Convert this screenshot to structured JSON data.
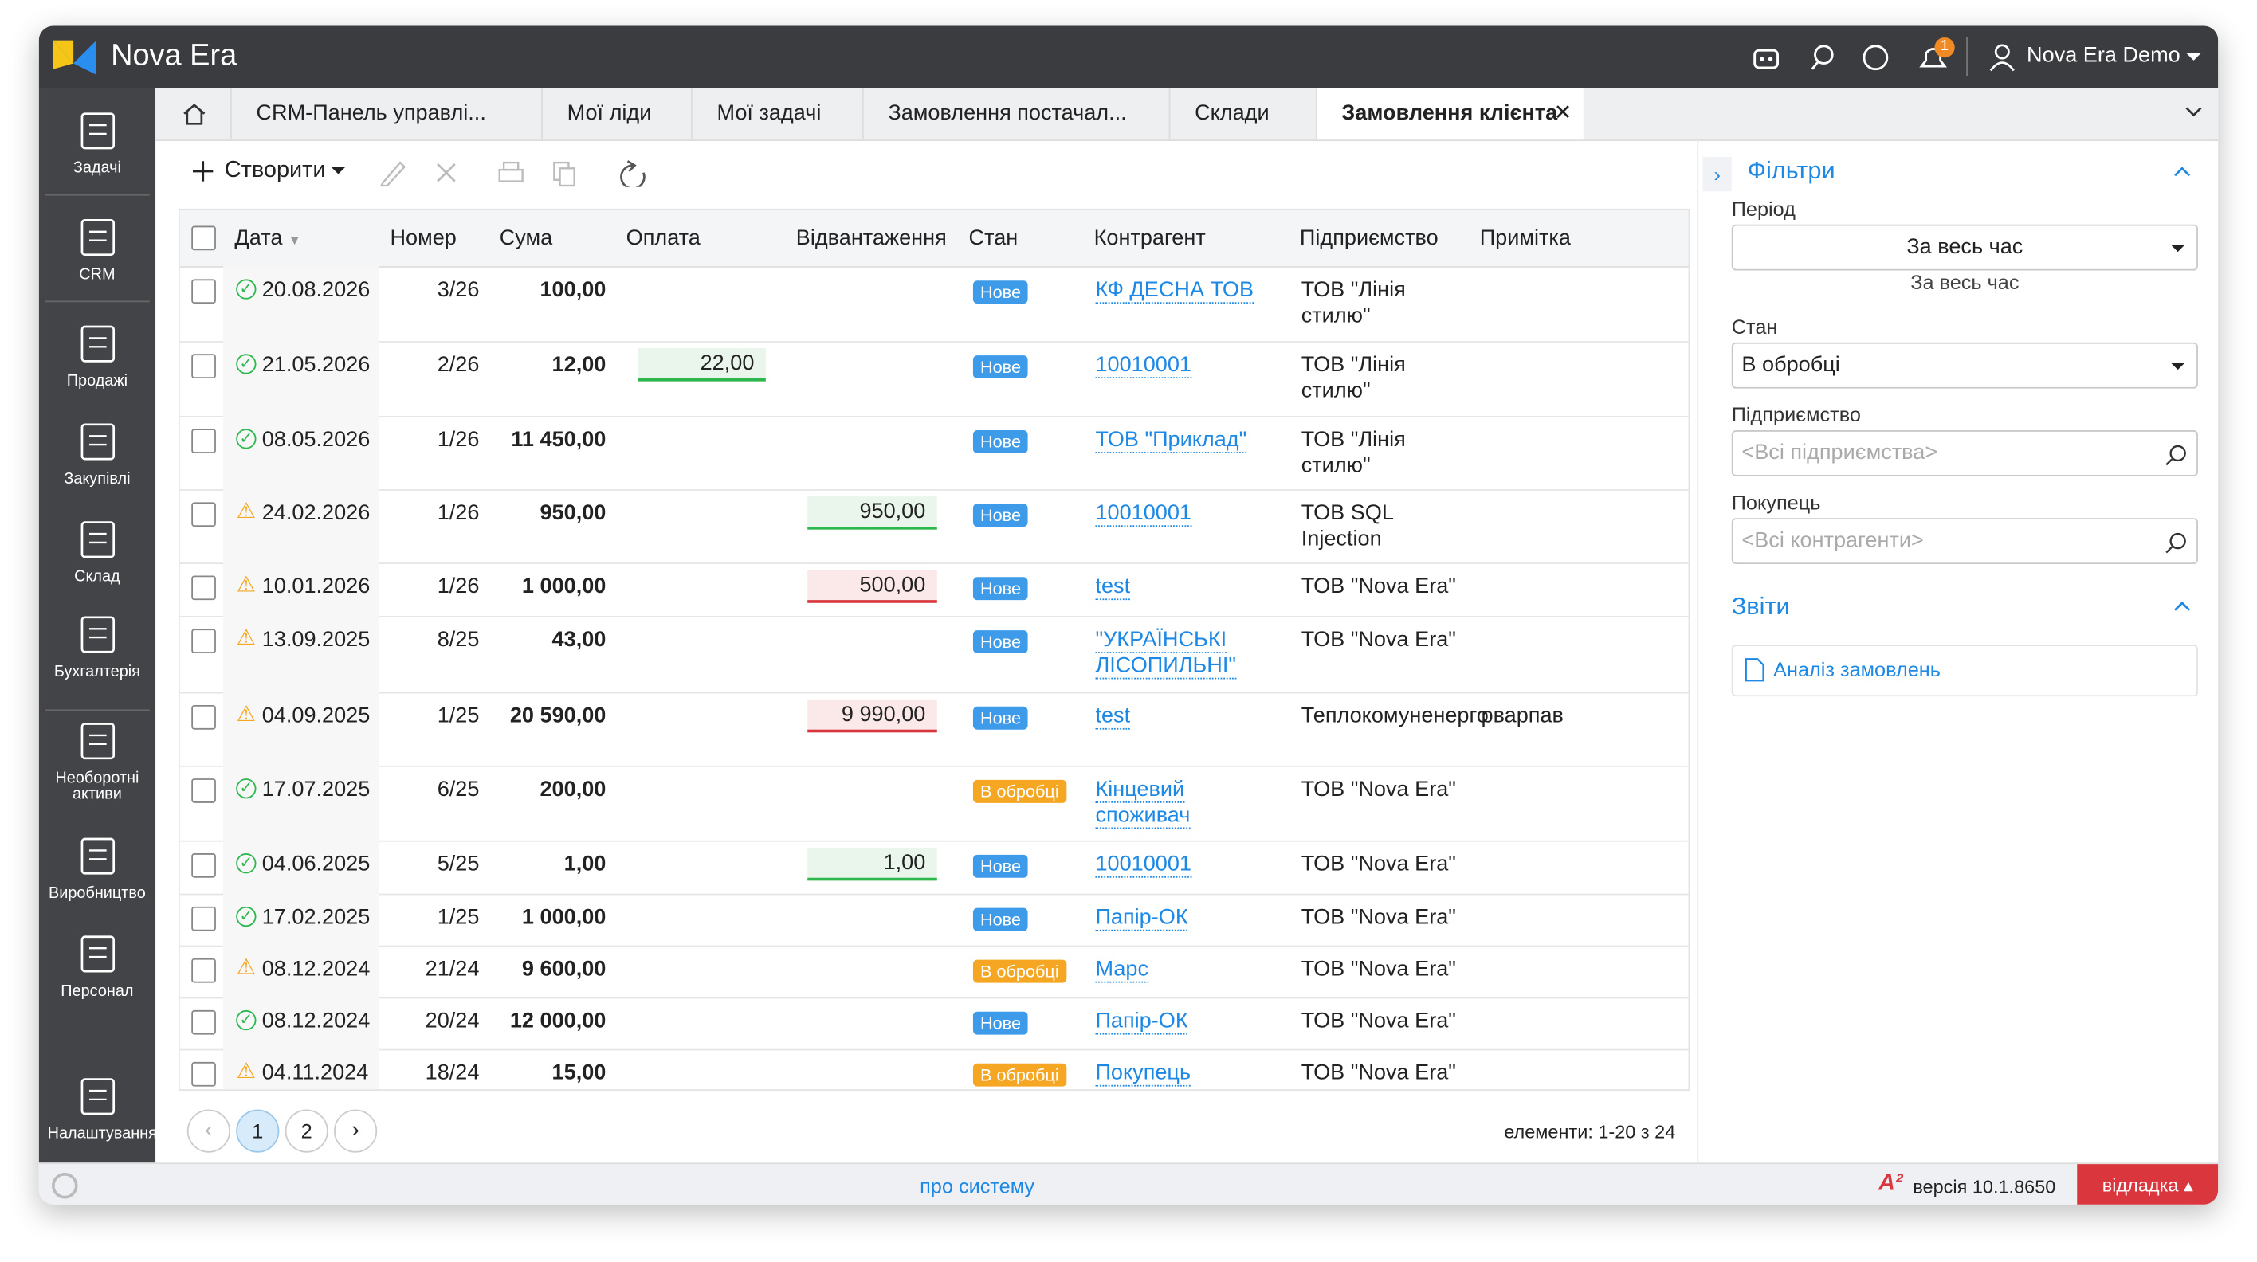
{
  "app": {
    "name": "Nova Era",
    "user": "Nova Era Demo",
    "notifications": "1"
  },
  "sidebar": [
    "Задачі",
    "CRM",
    "Продажі",
    "Закупівлі",
    "Склад",
    "Бухгалтерія",
    "Необоротні активи",
    "Виробництво",
    "Персонал",
    "Налаштування"
  ],
  "tabs": [
    "CRM-Панель управлі...",
    "Мої ліди",
    "Мої задачі",
    "Замовлення постачал...",
    "Склади",
    "Замовлення клієнта"
  ],
  "toolbar": {
    "create": "Створити"
  },
  "table": {
    "headers": [
      "Дата",
      "Номер",
      "Сума",
      "Оплата",
      "Відвантаження",
      "Стан",
      "Контрагент",
      "Підприємство",
      "Примітка"
    ],
    "rows": [
      {
        "status": "ok",
        "date": "20.08.2026",
        "number": "3/26",
        "sum": "100,00",
        "state": "Нове",
        "state_color": "#3d9be9",
        "counterparty": "КФ ДЕСНА ТОВ",
        "company": "ТОВ \"Лінія стилю\""
      },
      {
        "status": "ok",
        "date": "21.05.2026",
        "number": "2/26",
        "sum": "12,00",
        "payment": "22,00",
        "payment_bar": "#2db84d",
        "state": "Нове",
        "state_color": "#3d9be9",
        "counterparty": "10010001",
        "company": "ТОВ \"Лінія стилю\""
      },
      {
        "status": "ok",
        "date": "08.05.2026",
        "number": "1/26",
        "sum": "11 450,00",
        "state": "Нове",
        "state_color": "#3d9be9",
        "counterparty": "ТОВ \"Приклад\"",
        "company": "ТОВ \"Лінія стилю\""
      },
      {
        "status": "warn",
        "date": "24.02.2026",
        "number": "1/26",
        "sum": "950,00",
        "shipment": "950,00",
        "shipment_bar": "#2db84d",
        "state": "Нове",
        "state_color": "#3d9be9",
        "counterparty": "10010001",
        "company": "ТОВ SQL Injection"
      },
      {
        "status": "warn",
        "date": "10.01.2026",
        "number": "1/26",
        "sum": "1 000,00",
        "shipment": "500,00",
        "shipment_bar": "#d9363e",
        "state": "Нове",
        "state_color": "#3d9be9",
        "counterparty": "test",
        "company": "ТОВ \"Nova Era\""
      },
      {
        "status": "warn",
        "date": "13.09.2025",
        "number": "8/25",
        "sum": "43,00",
        "state": "Нове",
        "state_color": "#3d9be9",
        "counterparty": "\"УКРАЇНСЬКІ ЛІСОПИЛЬНІ\"",
        "company": "ТОВ \"Nova Era\""
      },
      {
        "status": "warn",
        "date": "04.09.2025",
        "number": "1/25",
        "sum": "20 590,00",
        "shipment": "9 990,00",
        "shipment_bar": "#d9363e",
        "state": "Нове",
        "state_color": "#3d9be9",
        "counterparty": "test",
        "company": "Теплокомуненерго",
        "note": "рварпав"
      },
      {
        "status": "ok",
        "date": "17.07.2025",
        "number": "6/25",
        "sum": "200,00",
        "state": "В обробці",
        "state_color": "#f5a623",
        "counterparty": "Кінцевий споживач",
        "company": "ТОВ \"Nova Era\""
      },
      {
        "status": "ok",
        "date": "04.06.2025",
        "number": "5/25",
        "sum": "1,00",
        "shipment": "1,00",
        "shipment_bar": "#2db84d",
        "state": "Нове",
        "state_color": "#3d9be9",
        "counterparty": "10010001",
        "company": "ТОВ \"Nova Era\""
      },
      {
        "status": "ok",
        "date": "17.02.2025",
        "number": "1/25",
        "sum": "1 000,00",
        "state": "Нове",
        "state_color": "#3d9be9",
        "counterparty": "Папір-ОК",
        "company": "ТОВ \"Nova Era\""
      },
      {
        "status": "warn",
        "date": "08.12.2024",
        "number": "21/24",
        "sum": "9 600,00",
        "state": "В обробці",
        "state_color": "#f5a623",
        "counterparty": "Марс",
        "company": "ТОВ \"Nova Era\""
      },
      {
        "status": "ok",
        "date": "08.12.2024",
        "number": "20/24",
        "sum": "12 000,00",
        "state": "Нове",
        "state_color": "#3d9be9",
        "counterparty": "Папір-ОК",
        "company": "ТОВ \"Nova Era\""
      },
      {
        "status": "warn",
        "date": "04.11.2024",
        "number": "18/24",
        "sum": "15,00",
        "state": "В обробці",
        "state_color": "#f5a623",
        "counterparty": "Покупець",
        "company": "ТОВ \"Nova Era\""
      }
    ]
  },
  "pagination": {
    "pages": [
      "1",
      "2"
    ],
    "summary": "елементи: 1-20 з 24"
  },
  "filters": {
    "title": "Фільтри",
    "period_label": "Період",
    "period_value": "За весь час",
    "period_hint": "За весь час",
    "state_label": "Стан",
    "state_value": "В обробці",
    "company_label": "Підприємство",
    "company_placeholder": "<Всі підприємства>",
    "buyer_label": "Покупець",
    "buyer_placeholder": "<Всі контрагенти>",
    "reports_title": "Звіти",
    "report": "Аналіз замовлень"
  },
  "footer": {
    "about": "про систему",
    "version_mark": "A²",
    "version": "версія 10.1.8650",
    "debug": "відладка"
  }
}
